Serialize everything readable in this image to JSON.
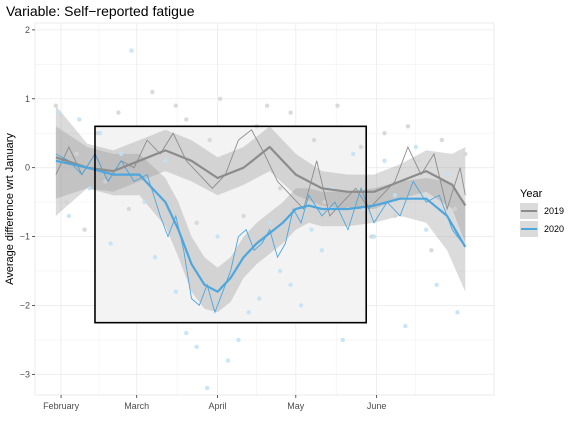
{
  "chart_data": {
    "type": "line",
    "title": "Variable: Self−reported fatigue",
    "xlabel": "",
    "ylabel": "Average difference wrt January",
    "x_ticks": [
      "February",
      "March",
      "April",
      "May",
      "June"
    ],
    "x_tick_positions": [
      0,
      29,
      60,
      90,
      121
    ],
    "x_range": [
      -10,
      166
    ],
    "ylim": [
      -3.3,
      2.1
    ],
    "y_ticks": [
      -3,
      -2,
      -1,
      0,
      1,
      2
    ],
    "grid": true,
    "legend": {
      "title": "Year",
      "position": "right",
      "entries": [
        "2019",
        "2020"
      ]
    },
    "highlight_box": {
      "x": [
        13,
        117
      ],
      "y": [
        -2.25,
        0.6
      ]
    },
    "series": [
      {
        "name": "2019",
        "color": "#8c8c8c",
        "smooth_x": [
          -2,
          10,
          20,
          30,
          40,
          50,
          60,
          70,
          80,
          90,
          100,
          110,
          120,
          130,
          140,
          150,
          155
        ],
        "smooth": [
          0.15,
          0.0,
          -0.05,
          0.1,
          0.25,
          0.1,
          -0.15,
          0.0,
          0.3,
          -0.1,
          -0.3,
          -0.35,
          -0.35,
          -0.2,
          -0.05,
          -0.25,
          -0.55
        ],
        "band_lo": [
          -0.7,
          -0.3,
          -0.35,
          -0.2,
          -0.05,
          -0.2,
          -0.4,
          -0.25,
          -0.05,
          -0.4,
          -0.55,
          -0.6,
          -0.6,
          -0.45,
          -0.35,
          -0.6,
          -1.1
        ],
        "band_hi": [
          0.9,
          0.35,
          0.25,
          0.4,
          0.55,
          0.4,
          0.15,
          0.3,
          0.6,
          0.2,
          -0.05,
          -0.1,
          -0.1,
          0.05,
          0.25,
          0.2,
          0.3
        ],
        "raw_x": [
          -2,
          3,
          8,
          13,
          18,
          23,
          28,
          33,
          38,
          43,
          48,
          53,
          58,
          63,
          68,
          73,
          78,
          83,
          88,
          93,
          98,
          103,
          108,
          113,
          118,
          123,
          128,
          133,
          138,
          143,
          148,
          153,
          155
        ],
        "raw": [
          -0.1,
          0.3,
          -0.1,
          0.2,
          -0.2,
          0.1,
          0.0,
          0.4,
          0.2,
          0.5,
          0.1,
          -0.1,
          -0.3,
          -0.1,
          0.4,
          0.55,
          0.2,
          -0.2,
          -0.4,
          -0.6,
          0.1,
          -0.7,
          -0.5,
          -0.3,
          -0.6,
          -0.4,
          -0.2,
          0.3,
          -0.1,
          0.2,
          -0.6,
          0.0,
          -0.4
        ],
        "points_x": [
          -2,
          2,
          6,
          9,
          14,
          17,
          22,
          26,
          31,
          35,
          39,
          44,
          48,
          52,
          57,
          61,
          66,
          70,
          75,
          79,
          84,
          88,
          93,
          97,
          101,
          106,
          110,
          115,
          119,
          124,
          128,
          133,
          137,
          142,
          146,
          151,
          155
        ],
        "points": [
          0.9,
          -0.5,
          0.2,
          -0.9,
          0.5,
          -0.2,
          0.8,
          -0.6,
          0.3,
          1.1,
          -0.4,
          0.9,
          0.7,
          -0.8,
          0.4,
          1.0,
          0.2,
          -0.7,
          0.6,
          0.9,
          -0.3,
          0.8,
          -0.2,
          0.4,
          -0.5,
          0.9,
          -0.6,
          0.3,
          -1.0,
          0.5,
          -0.7,
          0.6,
          0.1,
          -1.2,
          0.4,
          -0.6,
          0.2
        ]
      },
      {
        "name": "2020",
        "color": "#4da6dd",
        "smooth_x": [
          -2,
          10,
          20,
          30,
          40,
          45,
          50,
          55,
          60,
          65,
          70,
          75,
          80,
          85,
          90,
          95,
          100,
          105,
          110,
          120,
          130,
          140,
          148,
          155
        ],
        "smooth": [
          0.1,
          0.0,
          -0.1,
          -0.1,
          -0.5,
          -0.9,
          -1.4,
          -1.7,
          -1.8,
          -1.6,
          -1.3,
          -1.1,
          -0.95,
          -0.8,
          -0.6,
          -0.55,
          -0.6,
          -0.6,
          -0.6,
          -0.55,
          -0.45,
          -0.45,
          -0.7,
          -1.15
        ],
        "band_lo": [
          -0.45,
          -0.3,
          -0.4,
          -0.4,
          -0.85,
          -1.3,
          -1.8,
          -2.05,
          -2.1,
          -1.95,
          -1.6,
          -1.4,
          -1.25,
          -1.1,
          -0.9,
          -0.8,
          -0.85,
          -0.85,
          -0.85,
          -0.8,
          -0.7,
          -0.8,
          -1.2,
          -1.8
        ],
        "band_hi": [
          0.6,
          0.3,
          0.2,
          0.2,
          -0.15,
          -0.5,
          -1.0,
          -1.3,
          -1.45,
          -1.3,
          -1.0,
          -0.8,
          -0.65,
          -0.5,
          -0.3,
          -0.3,
          -0.35,
          -0.35,
          -0.35,
          -0.3,
          -0.2,
          -0.15,
          -0.2,
          -0.5
        ],
        "raw_x": [
          -2,
          3,
          8,
          13,
          18,
          23,
          28,
          33,
          38,
          41,
          44,
          47,
          50,
          53,
          56,
          59,
          62,
          65,
          68,
          71,
          74,
          77,
          80,
          83,
          86,
          89,
          92,
          95,
          100,
          105,
          110,
          115,
          120,
          125,
          130,
          135,
          140,
          145,
          150,
          155
        ],
        "raw": [
          0.2,
          0.1,
          -0.1,
          0.2,
          -0.2,
          0.1,
          -0.2,
          -0.1,
          -0.7,
          -1.0,
          -0.7,
          -1.2,
          -1.9,
          -2.0,
          -1.7,
          -2.1,
          -1.8,
          -1.5,
          -1.0,
          -0.9,
          -1.2,
          -1.1,
          -0.9,
          -1.3,
          -1.1,
          -0.6,
          -0.8,
          -0.4,
          -0.7,
          -0.5,
          -0.9,
          -0.3,
          -0.8,
          -0.5,
          -0.7,
          -0.2,
          -0.5,
          -0.4,
          -0.9,
          -1.15
        ],
        "points_x": [
          -1,
          3,
          7,
          11,
          15,
          19,
          23,
          27,
          32,
          36,
          40,
          44,
          48,
          52,
          56,
          60,
          64,
          68,
          72,
          76,
          80,
          84,
          88,
          92,
          96,
          100,
          104,
          108,
          112,
          116,
          120,
          124,
          128,
          132,
          136,
          140,
          144,
          148,
          152
        ],
        "points": [
          0.8,
          -0.7,
          0.7,
          -0.3,
          0.5,
          -1.1,
          0.2,
          1.7,
          -0.5,
          -1.3,
          0.1,
          -1.8,
          -2.4,
          -2.6,
          -3.2,
          -1.0,
          -2.8,
          -2.5,
          -2.1,
          -1.9,
          -0.8,
          -1.5,
          -1.7,
          -2.0,
          -0.9,
          -1.2,
          -0.3,
          -2.5,
          0.2,
          -0.6,
          -1.0,
          0.1,
          -0.4,
          -2.3,
          0.3,
          -0.9,
          -1.7,
          -0.1,
          -2.1
        ]
      }
    ]
  }
}
